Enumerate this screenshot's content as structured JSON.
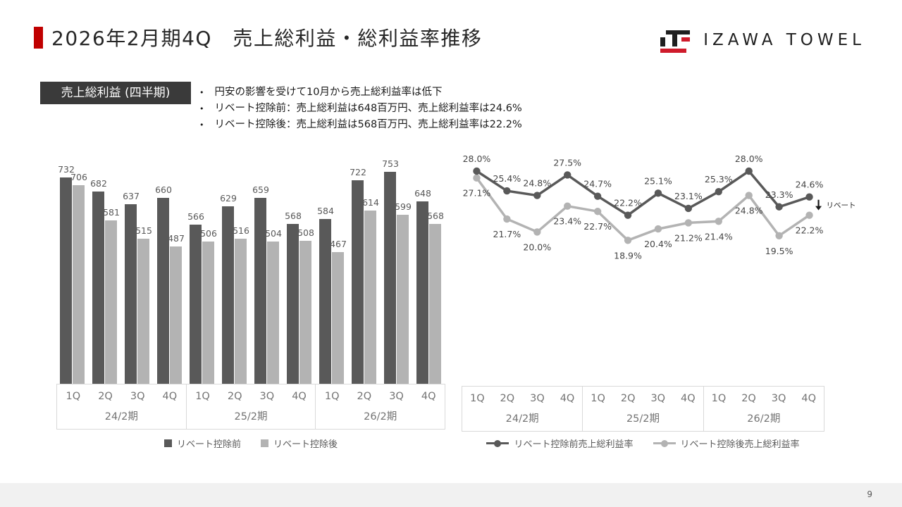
{
  "slide": {
    "title": "2026年2月期4Q　売上総利益・総利益率推移",
    "logo_text": "IZAWA TOWEL",
    "page_number": "9"
  },
  "section": {
    "label": "売上総利益 (四半期)",
    "bullets": [
      "円安の影響を受けて10月から売上総利益率は低下",
      "リベート控除前：売上総利益は648百万円、売上総利益率は24.6%",
      "リベート控除後：売上総利益は568百万円、売上総利益率は22.2%"
    ]
  },
  "colors": {
    "accent_red": "#c00000",
    "logo_red": "#cf1b2b",
    "series_dark": "#595959",
    "series_light": "#b3b3b3",
    "label_gray": "#595959",
    "line_label": "#454545",
    "header_box_bg": "#3a3a3a"
  },
  "chart_data": [
    {
      "type": "bar",
      "quarters": [
        "1Q",
        "2Q",
        "3Q",
        "4Q"
      ],
      "year_groups": [
        "24/2期",
        "25/2期",
        "26/2期"
      ],
      "series": [
        {
          "name": "リベート控除前",
          "values": [
            732,
            682,
            637,
            660,
            566,
            629,
            659,
            568,
            584,
            722,
            753,
            648
          ]
        },
        {
          "name": "リベート控除後",
          "values": [
            706,
            581,
            515,
            487,
            506,
            516,
            504,
            508,
            467,
            614,
            599,
            568
          ]
        }
      ],
      "legend_position": "bottom",
      "grid": false,
      "ylim": [
        0,
        780
      ]
    },
    {
      "type": "line",
      "quarters": [
        "1Q",
        "2Q",
        "3Q",
        "4Q"
      ],
      "year_groups": [
        "24/2期",
        "25/2期",
        "26/2期"
      ],
      "series": [
        {
          "name": "リベート控除前売上総利益率",
          "values": [
            28.0,
            25.4,
            24.8,
            27.5,
            24.7,
            22.2,
            25.1,
            23.1,
            25.3,
            28.0,
            23.3,
            24.6
          ]
        },
        {
          "name": "リベート控除後売上総利益率",
          "values": [
            27.1,
            21.7,
            20.0,
            23.4,
            22.7,
            18.9,
            20.4,
            21.2,
            21.4,
            24.8,
            19.5,
            22.2
          ]
        }
      ],
      "annotation": {
        "label": "リベート",
        "arrow": "down"
      },
      "legend_position": "bottom",
      "grid": false,
      "y_format": "percent"
    }
  ]
}
